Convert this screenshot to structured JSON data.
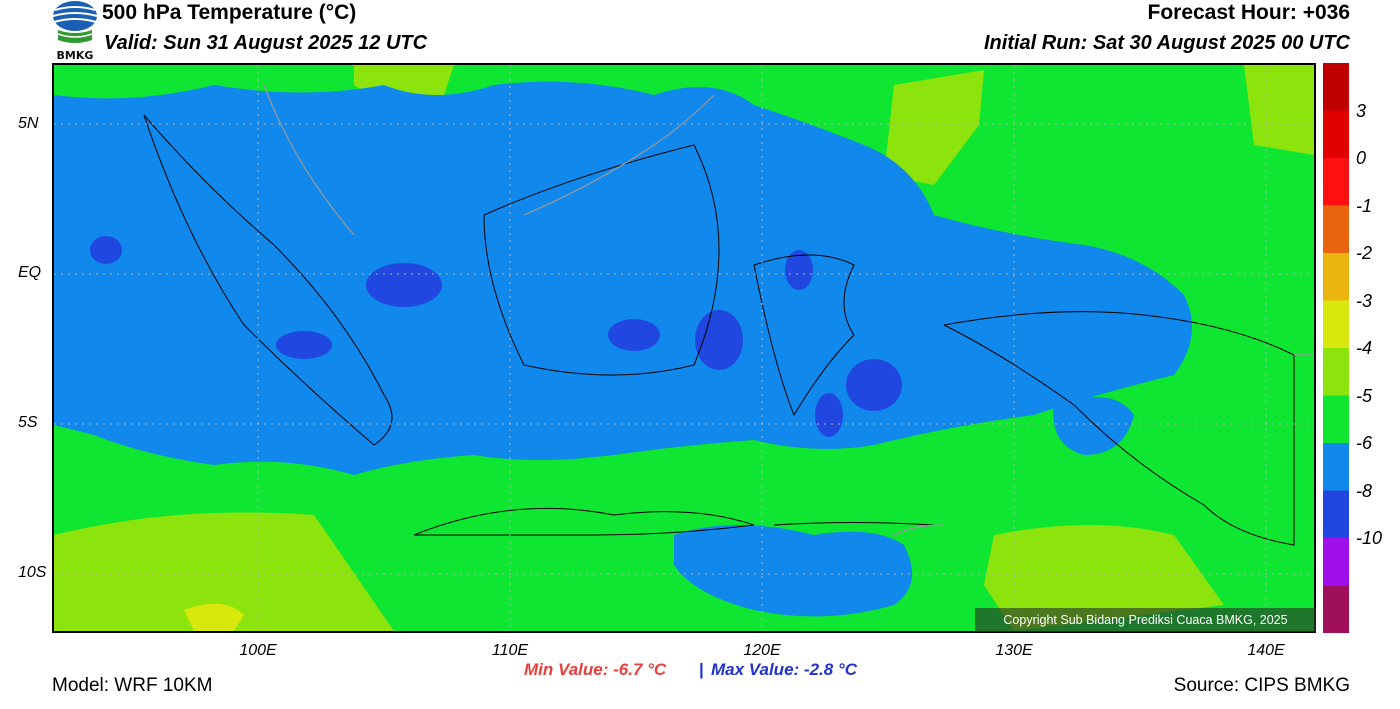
{
  "header": {
    "title": "500 hPa Temperature (°C)",
    "valid": "Valid: Sun 31 August 2025 12 UTC",
    "forecast_hour": "Forecast Hour: +036",
    "initial_run": "Initial Run: Sat 30 August 2025 00 UTC",
    "logo_text": "BMKG"
  },
  "map": {
    "lat_labels": [
      "5N",
      "EQ",
      "5S",
      "10S"
    ],
    "lon_labels": [
      "100E",
      "110E",
      "120E",
      "130E",
      "140E"
    ],
    "copyright": "Copyright Sub Bidang Prediksi Cuaca BMKG, 2025"
  },
  "stats": {
    "min": "Min Value: -6.7 °C",
    "separator": "|",
    "max": "Max Value: -2.8 °C"
  },
  "footer": {
    "model": "Model: WRF 10KM",
    "source": "Source: CIPS BMKG"
  },
  "colorbar": {
    "labels": [
      "3",
      "0",
      "-1",
      "-2",
      "-3",
      "-4",
      "-5",
      "-6",
      "-8",
      "-10"
    ],
    "colors": [
      "#c00000",
      "#e00000",
      "#ff1010",
      "#e8640e",
      "#ecb40e",
      "#d8e80c",
      "#8ce40c",
      "#0ee632",
      "#1088ec",
      "#2048e0",
      "#a010ec",
      "#a0105a"
    ]
  },
  "colors": {
    "field_green": "#0ee632",
    "field_blue": "#1088ec",
    "field_darkblue": "#2048e0",
    "field_lime": "#8ce40c",
    "field_yellow": "#d8e80c"
  }
}
